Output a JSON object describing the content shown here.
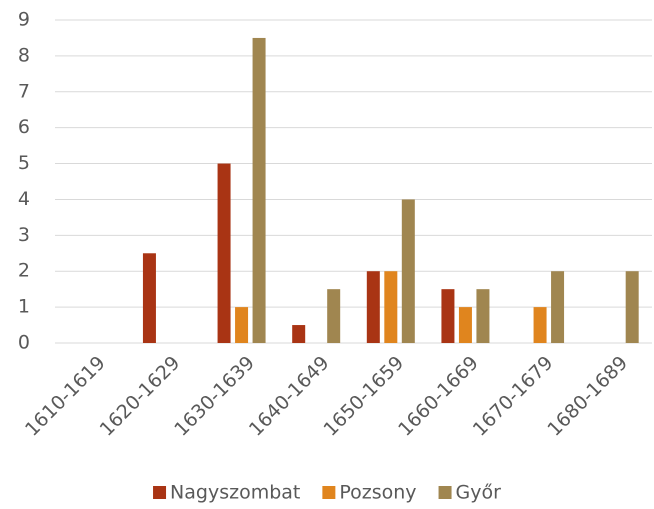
{
  "chart_data": {
    "type": "bar",
    "categories": [
      "1610-1619",
      "1620-1629",
      "1630-1639",
      "1640-1649",
      "1650-1659",
      "1660-1669",
      "1670-1679",
      "1680-1689"
    ],
    "series": [
      {
        "name": "Nagyszombat",
        "color": "#a93414",
        "values": [
          0,
          2.5,
          5,
          0.5,
          2,
          1.5,
          0,
          0
        ]
      },
      {
        "name": "Pozsony",
        "color": "#e0851e",
        "values": [
          0,
          0,
          1,
          0,
          2,
          1,
          1,
          0
        ]
      },
      {
        "name": "Győr",
        "color": "#a08650",
        "values": [
          0,
          0,
          8.5,
          1.5,
          4,
          1.5,
          2,
          2
        ]
      }
    ],
    "ylim": [
      0,
      9
    ],
    "yticks": [
      0,
      1,
      2,
      3,
      4,
      5,
      6,
      7,
      8,
      9
    ],
    "grid": true,
    "legend": "bottom"
  }
}
